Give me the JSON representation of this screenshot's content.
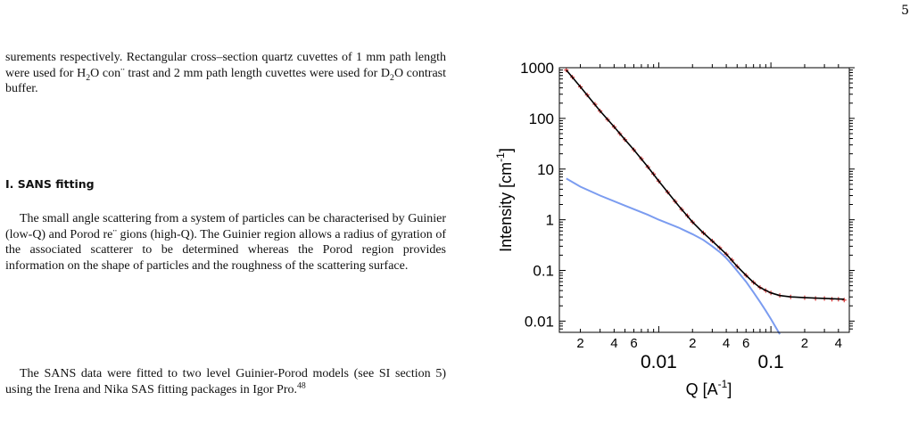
{
  "page": {
    "number": "5"
  },
  "text": {
    "p1_before_h2o": "surements respectively. Rectangular cross–section quartz cuvettes of 1 mm path length were used for H",
    "p1_sub1": "2",
    "p1_mid": "O con¨ trast and 2 mm path length cuvettes were used for D",
    "p1_sub2": "2",
    "p1_after": "O contrast buffer.",
    "section_heading": "I.   SANS fitting",
    "p2": "The small angle scattering from a system of particles can be characterised by Guinier (low-Q) and Porod re¨ gions (high-Q). The Guinier region allows a radius of gyration of the associated scatterer to be determined whereas the Porod region provides information on the shape of particles and the roughness of the scattering surface.",
    "p3_text": "The SANS data were fitted to two level Guinier-Porod models (see SI section 5) using the Irena and Nika SAS fitting packages in Igor Pro.",
    "p3_ref": "48"
  },
  "chart_data": {
    "type": "scatter",
    "x_scale": "log",
    "y_scale": "log",
    "xlabel": "Q [A",
    "xlabel_sup": "-1",
    "xlabel_close": "]",
    "ylabel": "Intensity [cm",
    "ylabel_sup": "-1",
    "ylabel_close": "]",
    "xlim": [
      0.0013,
      0.5
    ],
    "ylim": [
      0.006,
      1000
    ],
    "y_ticks": [
      "0.01",
      "0.1",
      "1",
      "10",
      "100",
      "1000"
    ],
    "x_major_labels": [
      "0.01",
      "0.1"
    ],
    "x_minor_labels": [
      {
        "value": 0.002,
        "label": "2"
      },
      {
        "value": 0.004,
        "label": "4"
      },
      {
        "value": 0.006,
        "label": "6"
      },
      {
        "value": 0.02,
        "label": "2"
      },
      {
        "value": 0.04,
        "label": "4"
      },
      {
        "value": 0.06,
        "label": "6"
      },
      {
        "value": 0.2,
        "label": "2"
      },
      {
        "value": 0.4,
        "label": "4"
      }
    ],
    "series": [
      {
        "role": "data",
        "color": "#d62728",
        "points": [
          [
            0.0015,
            900
          ],
          [
            0.0017,
            650
          ],
          [
            0.002,
            420
          ],
          [
            0.0023,
            290
          ],
          [
            0.0027,
            190
          ],
          [
            0.003,
            140
          ],
          [
            0.0035,
            95
          ],
          [
            0.004,
            68
          ],
          [
            0.0045,
            50
          ],
          [
            0.005,
            38
          ],
          [
            0.006,
            24
          ],
          [
            0.007,
            16
          ],
          [
            0.008,
            11
          ],
          [
            0.009,
            8
          ],
          [
            0.01,
            5.8
          ],
          [
            0.012,
            3.5
          ],
          [
            0.014,
            2.3
          ],
          [
            0.016,
            1.6
          ],
          [
            0.018,
            1.2
          ],
          [
            0.02,
            0.9
          ],
          [
            0.025,
            0.55
          ],
          [
            0.03,
            0.38
          ],
          [
            0.035,
            0.28
          ],
          [
            0.04,
            0.21
          ],
          [
            0.045,
            0.16
          ],
          [
            0.05,
            0.12
          ],
          [
            0.06,
            0.08
          ],
          [
            0.07,
            0.058
          ],
          [
            0.08,
            0.046
          ],
          [
            0.09,
            0.04
          ],
          [
            0.1,
            0.036
          ],
          [
            0.12,
            0.032
          ],
          [
            0.15,
            0.03
          ],
          [
            0.2,
            0.029
          ],
          [
            0.25,
            0.028
          ],
          [
            0.3,
            0.028
          ],
          [
            0.35,
            0.027
          ],
          [
            0.4,
            0.027
          ],
          [
            0.45,
            0.026
          ]
        ]
      },
      {
        "role": "fit",
        "color": "#000000",
        "points": [
          [
            0.0015,
            900
          ],
          [
            0.002,
            420
          ],
          [
            0.003,
            140
          ],
          [
            0.004,
            68
          ],
          [
            0.005,
            38
          ],
          [
            0.006,
            24
          ],
          [
            0.008,
            11
          ],
          [
            0.01,
            5.8
          ],
          [
            0.012,
            3.5
          ],
          [
            0.015,
            1.9
          ],
          [
            0.02,
            0.9
          ],
          [
            0.025,
            0.55
          ],
          [
            0.03,
            0.38
          ],
          [
            0.04,
            0.21
          ],
          [
            0.05,
            0.12
          ],
          [
            0.06,
            0.08
          ],
          [
            0.07,
            0.058
          ],
          [
            0.08,
            0.046
          ],
          [
            0.1,
            0.036
          ],
          [
            0.12,
            0.032
          ],
          [
            0.15,
            0.03
          ],
          [
            0.2,
            0.029
          ],
          [
            0.3,
            0.028
          ],
          [
            0.45,
            0.027
          ]
        ]
      },
      {
        "role": "level component",
        "color": "#7b9cf0",
        "points": [
          [
            0.0015,
            6.5
          ],
          [
            0.002,
            4.5
          ],
          [
            0.003,
            3.0
          ],
          [
            0.005,
            1.9
          ],
          [
            0.008,
            1.25
          ],
          [
            0.01,
            1.0
          ],
          [
            0.015,
            0.7
          ],
          [
            0.02,
            0.52
          ],
          [
            0.025,
            0.4
          ],
          [
            0.03,
            0.3
          ],
          [
            0.035,
            0.23
          ],
          [
            0.04,
            0.175
          ],
          [
            0.045,
            0.13
          ],
          [
            0.05,
            0.098
          ],
          [
            0.06,
            0.06
          ],
          [
            0.07,
            0.037
          ],
          [
            0.08,
            0.024
          ],
          [
            0.09,
            0.016
          ],
          [
            0.1,
            0.011
          ],
          [
            0.12,
            0.0055
          ]
        ]
      }
    ]
  }
}
